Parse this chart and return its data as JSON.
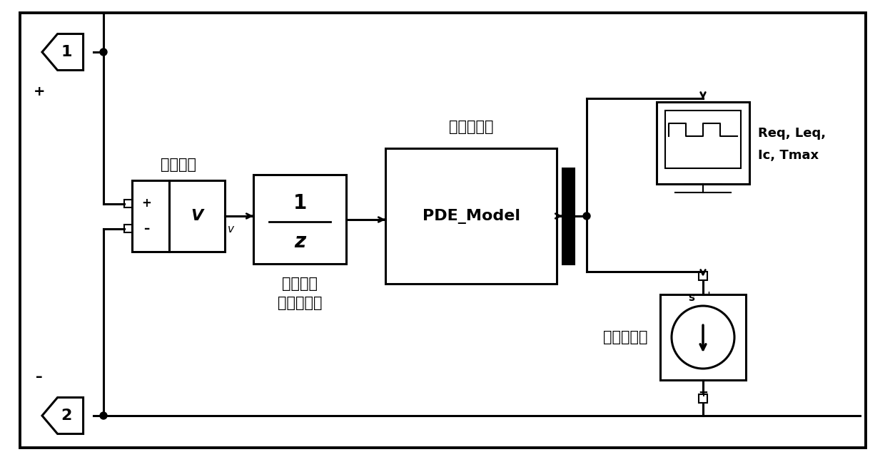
{
  "background_color": "#ffffff",
  "lw": 2.2,
  "lw_thin": 1.5,
  "fig_width": 12.4,
  "fig_height": 6.48,
  "voltmeter_label": "电压测量",
  "delay_label_1": "迟滙模块",
  "delay_label_2": "消除代数环",
  "pde_label": "有限元模型",
  "pde_block": "PDE_Model",
  "scope_label_1": "Req, Leq,",
  "scope_label_2": "Ic, Tmax",
  "current_source_label": "受控电流源",
  "font_size_cn": 15,
  "font_size_en": 13,
  "font_size_math": 16,
  "font_size_port": 16,
  "font_size_label": 13
}
